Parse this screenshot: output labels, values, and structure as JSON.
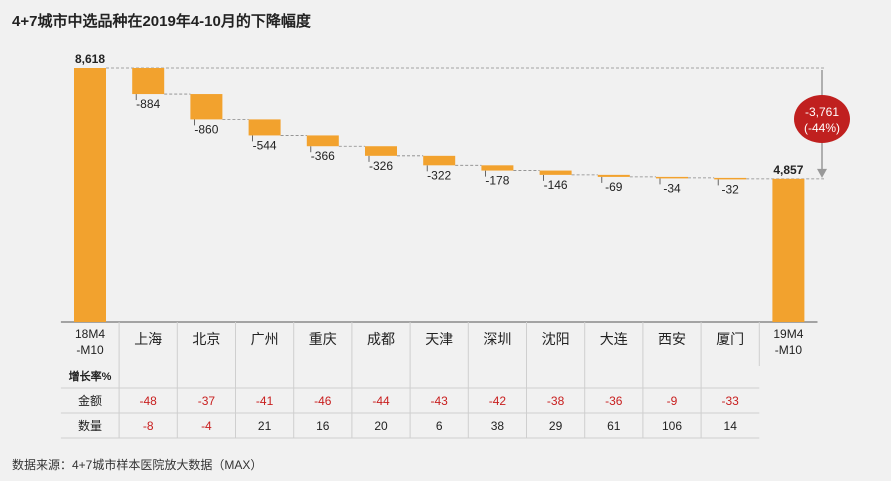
{
  "chart_data": {
    "type": "waterfall",
    "title": "4+7城市中选品种在2019年4-10月的下降幅度",
    "start": {
      "label_lines": [
        "18M4",
        "-M10"
      ],
      "value": 8618,
      "value_label": "8,618"
    },
    "end": {
      "label_lines": [
        "19M4",
        "-M10"
      ],
      "value": 4857,
      "value_label": "4,857"
    },
    "steps": [
      {
        "city": "上海",
        "delta": -884,
        "label": "-884"
      },
      {
        "city": "北京",
        "delta": -860,
        "label": "-860"
      },
      {
        "city": "广州",
        "delta": -544,
        "label": "-544"
      },
      {
        "city": "重庆",
        "delta": -366,
        "label": "-366"
      },
      {
        "city": "成都",
        "delta": -326,
        "label": "-326"
      },
      {
        "city": "天津",
        "delta": -322,
        "label": "-322"
      },
      {
        "city": "深圳",
        "delta": -178,
        "label": "-178"
      },
      {
        "city": "沈阳",
        "delta": -146,
        "label": "-146"
      },
      {
        "city": "大连",
        "delta": -69,
        "label": "-69"
      },
      {
        "city": "西安",
        "delta": -34,
        "label": "-34"
      },
      {
        "city": "厦门",
        "delta": -32,
        "label": "-32"
      }
    ],
    "total_change": {
      "line1": "-3,761",
      "line2": "(-44%)"
    },
    "ylim": [
      0,
      8618
    ],
    "bar_color": "#f2a22e",
    "callout_color": "#c0201f",
    "table": {
      "header": "增长率%",
      "rows": [
        {
          "label": "金额",
          "values": [
            "-48",
            "-37",
            "-41",
            "-46",
            "-44",
            "-43",
            "-42",
            "-38",
            "-36",
            "-9",
            "-33"
          ]
        },
        {
          "label": "数量",
          "values": [
            "-8",
            "-4",
            "21",
            "16",
            "20",
            "6",
            "38",
            "29",
            "61",
            "106",
            "14"
          ]
        }
      ]
    }
  },
  "source": "数据来源：4+7城市样本医院放大数据（MAX）"
}
